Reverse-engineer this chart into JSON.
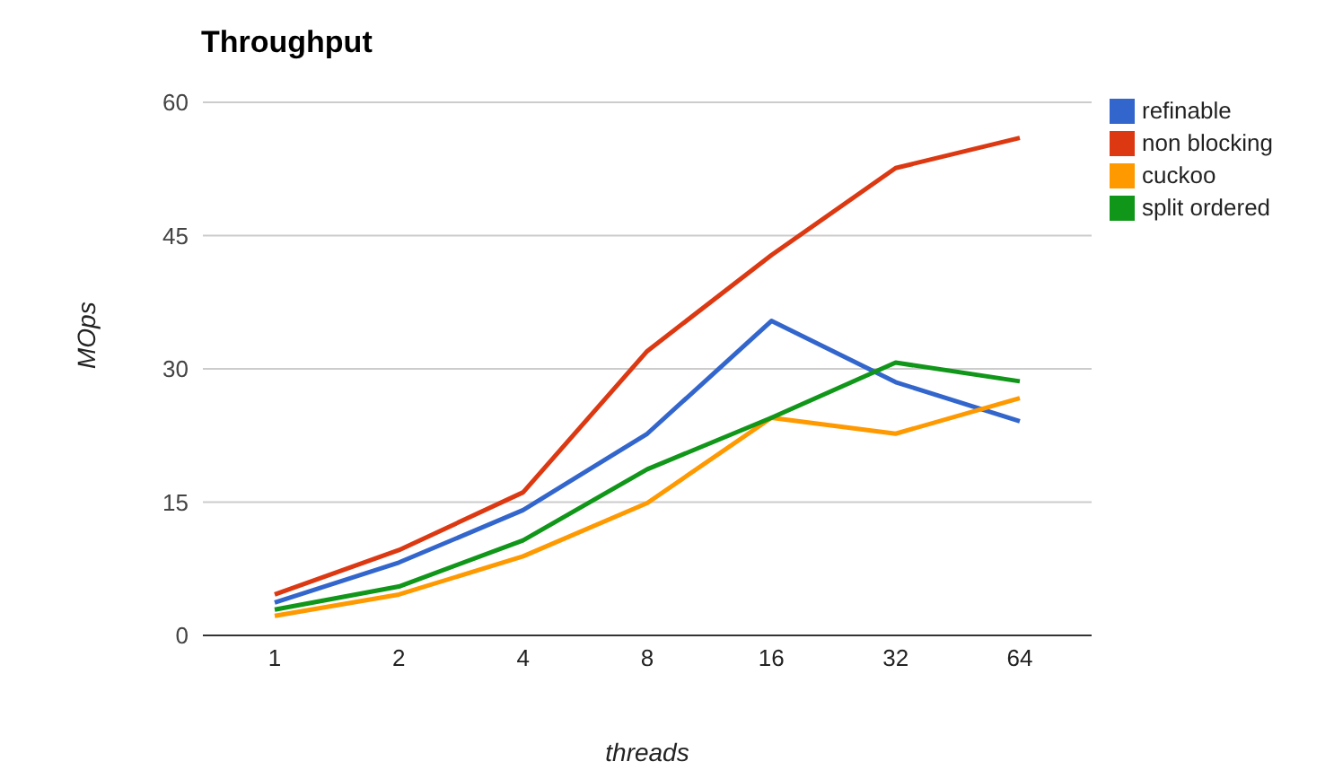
{
  "chart_data": {
    "type": "line",
    "title": "Throughput",
    "xlabel": "threads",
    "ylabel": "MOps",
    "categories": [
      "1",
      "2",
      "4",
      "8",
      "16",
      "32",
      "64"
    ],
    "series": [
      {
        "name": "refinable",
        "color": "#3366cc",
        "values": [
          3.7,
          8.2,
          14.1,
          22.7,
          35.4,
          28.5,
          24.1
        ]
      },
      {
        "name": "non blocking",
        "color": "#dc3912",
        "values": [
          4.6,
          9.6,
          16.1,
          32,
          42.8,
          52.6,
          56
        ]
      },
      {
        "name": "cuckoo",
        "color": "#ff9900",
        "values": [
          2.2,
          4.6,
          8.9,
          14.9,
          24.5,
          22.7,
          26.7
        ]
      },
      {
        "name": "split ordered",
        "color": "#109618",
        "values": [
          2.9,
          5.5,
          10.7,
          18.7,
          24.5,
          30.7,
          28.6
        ]
      }
    ],
    "ylim": [
      0,
      60
    ],
    "yticks": [
      0,
      15,
      30,
      45,
      60
    ],
    "grid": "y",
    "legend": "right",
    "marker": "none",
    "line_style": "solid"
  }
}
